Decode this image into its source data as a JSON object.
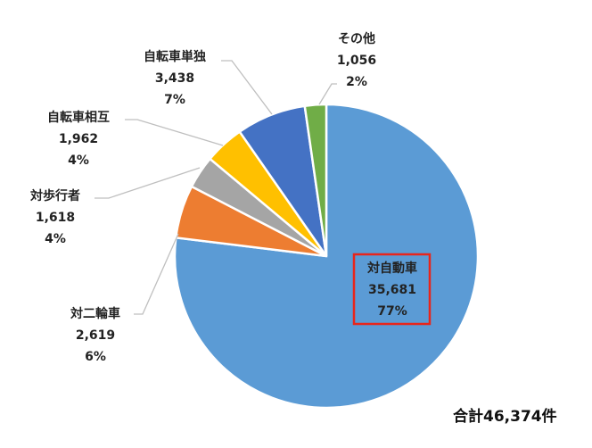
{
  "chart_data": {
    "type": "pie",
    "start_angle": "12 o'clock",
    "direction": "clockwise",
    "slices": [
      {
        "label": "対自動車",
        "value": 35681,
        "value_text": "35,681",
        "percent_text": "77%",
        "color": "#5B9BD5",
        "highlighted": true
      },
      {
        "label": "対二輪車",
        "value": 2619,
        "value_text": "2,619",
        "percent_text": "6%",
        "color": "#ED7D31"
      },
      {
        "label": "対歩行者",
        "value": 1618,
        "value_text": "1,618",
        "percent_text": "4%",
        "color": "#A5A5A5"
      },
      {
        "label": "自転車相互",
        "value": 1962,
        "value_text": "1,962",
        "percent_text": "4%",
        "color": "#FFC000"
      },
      {
        "label": "自転車単独",
        "value": 3438,
        "value_text": "3,438",
        "percent_text": "7%",
        "color": "#4472C4"
      },
      {
        "label": "その他",
        "value": 1056,
        "value_text": "1,056",
        "percent_text": "2%",
        "color": "#70AD47"
      }
    ],
    "highlight_color": "#E8251B",
    "total_text": "合計46,374件"
  }
}
